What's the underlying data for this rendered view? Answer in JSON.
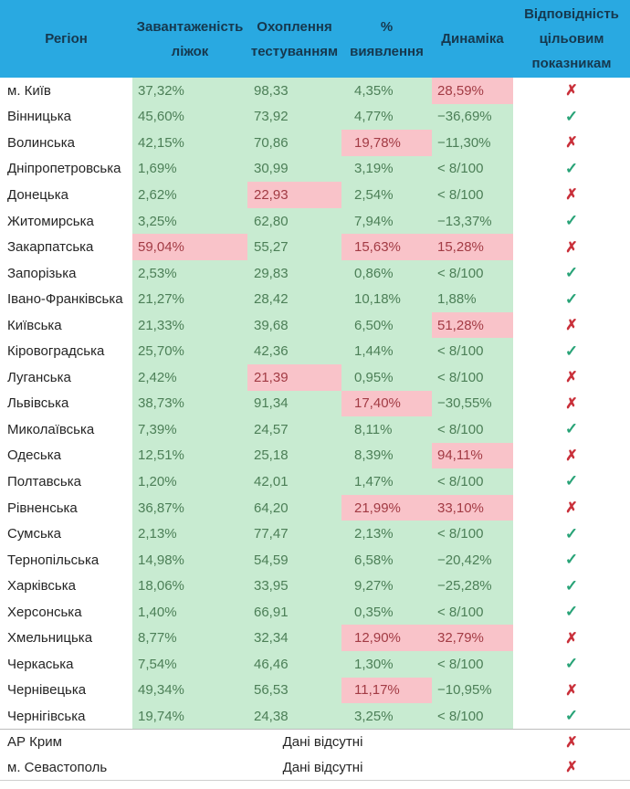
{
  "colors": {
    "header_bg": "#29A9E1",
    "header_text": "#16384E",
    "good_bg": "#C8EBD1",
    "good_text": "#4C7F57",
    "bad_bg": "#F9C3C9",
    "bad_text": "#A23B44",
    "region_text": "#252525",
    "check": "#28A377",
    "cross": "#C9303A",
    "separator": "#BDBDBD"
  },
  "icons": {
    "check": "✓",
    "cross": "✗"
  },
  "chart_data": {
    "type": "table",
    "header": {
      "columns": [
        {
          "id": "region",
          "lines": [
            "Регіон"
          ]
        },
        {
          "id": "beds",
          "lines": [
            "Завантаженість",
            "ліжок"
          ]
        },
        {
          "id": "testing",
          "lines": [
            "Охоплення",
            "тестуванням"
          ]
        },
        {
          "id": "detection",
          "lines": [
            "%",
            "виявлення"
          ]
        },
        {
          "id": "dynamics",
          "lines": [
            "Динаміка"
          ]
        },
        {
          "id": "compliance",
          "lines": [
            "Відповідність",
            "цільовим",
            "показникам"
          ]
        }
      ]
    },
    "rows": [
      {
        "region": "м. Київ",
        "values": [
          "37,32%",
          "98,33",
          "4,35%",
          "28,59%"
        ],
        "bad": [
          false,
          false,
          false,
          true
        ],
        "pass": false
      },
      {
        "region": "Вінницька",
        "values": [
          "45,60%",
          "73,92",
          "4,77%",
          "−36,69%"
        ],
        "bad": [
          false,
          false,
          false,
          false
        ],
        "pass": true
      },
      {
        "region": "Волинська",
        "values": [
          "42,15%",
          "70,86",
          "19,78%",
          "−11,30%"
        ],
        "bad": [
          false,
          false,
          true,
          false
        ],
        "pass": false
      },
      {
        "region": "Дніпропетровська",
        "values": [
          "1,69%",
          "30,99",
          "3,19%",
          "< 8/100"
        ],
        "bad": [
          false,
          false,
          false,
          false
        ],
        "pass": true
      },
      {
        "region": "Донецька",
        "values": [
          "2,62%",
          "22,93",
          "2,54%",
          "< 8/100"
        ],
        "bad": [
          false,
          true,
          false,
          false
        ],
        "pass": false
      },
      {
        "region": "Житомирська",
        "values": [
          "3,25%",
          "62,80",
          "7,94%",
          "−13,37%"
        ],
        "bad": [
          false,
          false,
          false,
          false
        ],
        "pass": true
      },
      {
        "region": "Закарпатська",
        "values": [
          "59,04%",
          "55,27",
          "15,63%",
          "15,28%"
        ],
        "bad": [
          true,
          false,
          true,
          true
        ],
        "pass": false
      },
      {
        "region": "Запорізька",
        "values": [
          "2,53%",
          "29,83",
          "0,86%",
          "< 8/100"
        ],
        "bad": [
          false,
          false,
          false,
          false
        ],
        "pass": true
      },
      {
        "region": "Івано-Франківська",
        "values": [
          "21,27%",
          "28,42",
          "10,18%",
          "1,88%"
        ],
        "bad": [
          false,
          false,
          false,
          false
        ],
        "pass": true
      },
      {
        "region": "Київська",
        "values": [
          "21,33%",
          "39,68",
          "6,50%",
          "51,28%"
        ],
        "bad": [
          false,
          false,
          false,
          true
        ],
        "pass": false
      },
      {
        "region": "Кіровоградська",
        "values": [
          "25,70%",
          "42,36",
          "1,44%",
          "< 8/100"
        ],
        "bad": [
          false,
          false,
          false,
          false
        ],
        "pass": true
      },
      {
        "region": "Луганська",
        "values": [
          "2,42%",
          "21,39",
          "0,95%",
          "< 8/100"
        ],
        "bad": [
          false,
          true,
          false,
          false
        ],
        "pass": false
      },
      {
        "region": "Львівська",
        "values": [
          "38,73%",
          "91,34",
          "17,40%",
          "−30,55%"
        ],
        "bad": [
          false,
          false,
          true,
          false
        ],
        "pass": false
      },
      {
        "region": "Миколаївська",
        "values": [
          "7,39%",
          "24,57",
          "8,11%",
          "< 8/100"
        ],
        "bad": [
          false,
          false,
          false,
          false
        ],
        "pass": true
      },
      {
        "region": "Одеська",
        "values": [
          "12,51%",
          "25,18",
          "8,39%",
          "94,11%"
        ],
        "bad": [
          false,
          false,
          false,
          true
        ],
        "pass": false
      },
      {
        "region": "Полтавська",
        "values": [
          "1,20%",
          "42,01",
          "1,47%",
          "< 8/100"
        ],
        "bad": [
          false,
          false,
          false,
          false
        ],
        "pass": true
      },
      {
        "region": "Рівненська",
        "values": [
          "36,87%",
          "64,20",
          "21,99%",
          "33,10%"
        ],
        "bad": [
          false,
          false,
          true,
          true
        ],
        "pass": false
      },
      {
        "region": "Сумська",
        "values": [
          "2,13%",
          "77,47",
          "2,13%",
          "< 8/100"
        ],
        "bad": [
          false,
          false,
          false,
          false
        ],
        "pass": true
      },
      {
        "region": "Тернопільська",
        "values": [
          "14,98%",
          "54,59",
          "6,58%",
          "−20,42%"
        ],
        "bad": [
          false,
          false,
          false,
          false
        ],
        "pass": true
      },
      {
        "region": "Харківська",
        "values": [
          "18,06%",
          "33,95",
          "9,27%",
          "−25,28%"
        ],
        "bad": [
          false,
          false,
          false,
          false
        ],
        "pass": true
      },
      {
        "region": "Херсонська",
        "values": [
          "1,40%",
          "66,91",
          "0,35%",
          "< 8/100"
        ],
        "bad": [
          false,
          false,
          false,
          false
        ],
        "pass": true
      },
      {
        "region": "Хмельницька",
        "values": [
          "8,77%",
          "32,34",
          "12,90%",
          "32,79%"
        ],
        "bad": [
          false,
          false,
          true,
          true
        ],
        "pass": false
      },
      {
        "region": "Черкаська",
        "values": [
          "7,54%",
          "46,46",
          "1,30%",
          "< 8/100"
        ],
        "bad": [
          false,
          false,
          false,
          false
        ],
        "pass": true
      },
      {
        "region": "Чернівецька",
        "values": [
          "49,34%",
          "56,53",
          "11,17%",
          "−10,95%"
        ],
        "bad": [
          false,
          false,
          true,
          false
        ],
        "pass": false
      },
      {
        "region": "Чернігівська",
        "values": [
          "19,74%",
          "24,38",
          "3,25%",
          "< 8/100"
        ],
        "bad": [
          false,
          false,
          false,
          false
        ],
        "pass": true
      },
      {
        "region": "АР Крим",
        "no_data": "Дані відсутні",
        "pass": false
      },
      {
        "region": "м. Севастополь",
        "no_data": "Дані відсутні",
        "pass": false
      }
    ]
  }
}
